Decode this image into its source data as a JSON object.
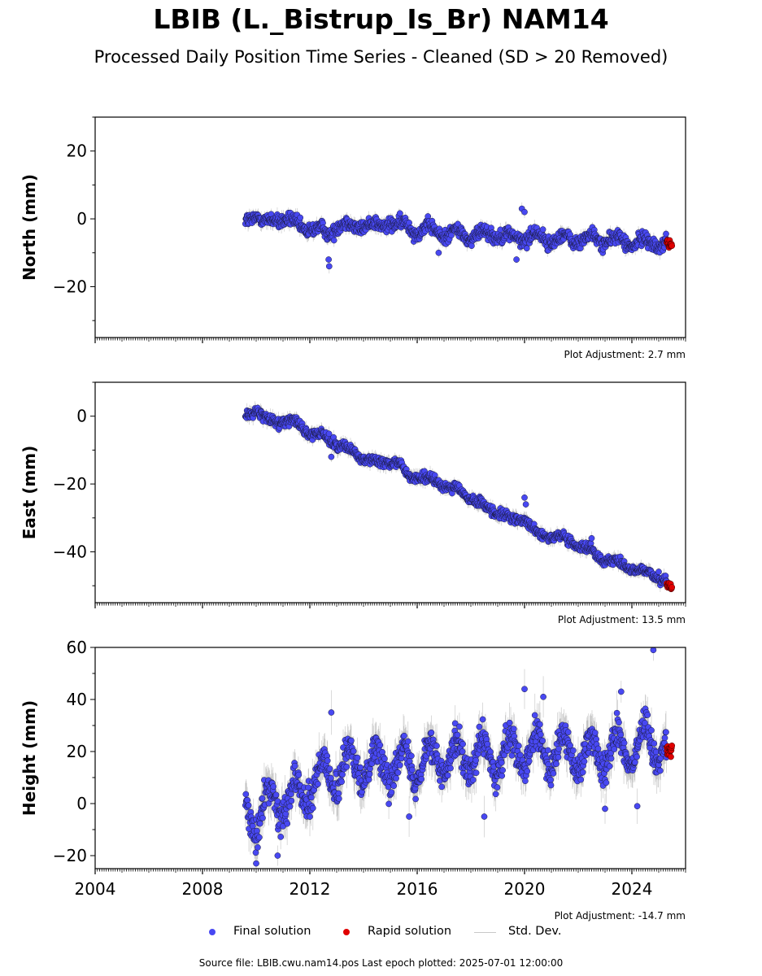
{
  "title": "LBIB (L._Bistrup_Is_Br) NAM14",
  "subtitle": "Processed Daily Position Time Series - Cleaned (SD > 20 Removed)",
  "footer": "Source file: LBIB.cwu.nam14.pos  Last epoch plotted: 2025-07-01 12:00:00",
  "legend": {
    "final": "Final solution",
    "rapid": "Rapid solution",
    "std": "Std. Dev."
  },
  "colors": {
    "final": "#4848f2",
    "rapid": "#e00000",
    "std": "#bdbdbd"
  },
  "chart_data": [
    {
      "type": "scatter",
      "panel": "north",
      "ylabel": "North (mm)",
      "adjustment_text": "Plot Adjustment: 2.7 mm",
      "xlim": [
        2004,
        2026
      ],
      "ylim": [
        -35,
        30
      ],
      "yticks": [
        -20,
        0,
        20
      ],
      "x_major_ticks": [
        2004,
        2008,
        2012,
        2016,
        2020,
        2024
      ],
      "show_x_tick_labels": false,
      "data_start": 2009.6,
      "rapid_start": 2025.3,
      "last_epoch": 2025.5,
      "final_key_points": [
        [
          2009.6,
          -1
        ],
        [
          2010.0,
          2
        ],
        [
          2010.4,
          -2
        ],
        [
          2011.0,
          1
        ],
        [
          2011.6,
          -3
        ],
        [
          2012.0,
          -2
        ],
        [
          2012.7,
          -5
        ],
        [
          2013.0,
          -1
        ],
        [
          2013.6,
          -3
        ],
        [
          2014.0,
          -1
        ],
        [
          2014.6,
          -3
        ],
        [
          2015.0,
          0
        ],
        [
          2015.4,
          -3
        ],
        [
          2015.5,
          -2
        ],
        [
          2016.0,
          -3
        ],
        [
          2017.0,
          -4
        ],
        [
          2018.0,
          -5
        ],
        [
          2019.0,
          -4
        ],
        [
          2019.5,
          -6
        ],
        [
          2020.0,
          -5
        ],
        [
          2021.0,
          -6
        ],
        [
          2022.0,
          -6
        ],
        [
          2023.0,
          -6
        ],
        [
          2024.0,
          -7
        ],
        [
          2025.0,
          -7
        ],
        [
          2025.3,
          -7
        ]
      ],
      "final_noise_mm": 1.8,
      "final_seasonal_mm": 1.5,
      "final_outliers": [
        [
          2012.7,
          -12
        ],
        [
          2012.72,
          -14
        ],
        [
          2016.8,
          -10
        ],
        [
          2019.7,
          -12
        ],
        [
          2019.9,
          3
        ],
        [
          2020.0,
          2
        ]
      ],
      "rapid_range": [
        -8.5,
        -6
      ],
      "stddev_mm": 1.5
    },
    {
      "type": "scatter",
      "panel": "east",
      "ylabel": "East (mm)",
      "adjustment_text": "Plot Adjustment: 13.5 mm",
      "xlim": [
        2004,
        2026
      ],
      "ylim": [
        -55,
        10
      ],
      "yticks": [
        -40,
        -20,
        0
      ],
      "x_major_ticks": [
        2004,
        2008,
        2012,
        2016,
        2020,
        2024
      ],
      "show_x_tick_labels": false,
      "data_start": 2009.6,
      "rapid_start": 2025.3,
      "last_epoch": 2025.5,
      "final_key_points": [
        [
          2009.6,
          0
        ],
        [
          2010.0,
          2
        ],
        [
          2010.5,
          -2
        ],
        [
          2011.0,
          -1
        ],
        [
          2011.5,
          -2
        ],
        [
          2012.0,
          -5
        ],
        [
          2012.5,
          -6
        ],
        [
          2013.0,
          -8
        ],
        [
          2013.5,
          -10
        ],
        [
          2014.0,
          -12
        ],
        [
          2014.5,
          -14
        ],
        [
          2015.0,
          -13
        ],
        [
          2015.4,
          -14
        ],
        [
          2015.5,
          -17
        ],
        [
          2016.0,
          -18
        ],
        [
          2017.0,
          -20
        ],
        [
          2018.0,
          -24
        ],
        [
          2018.5,
          -27
        ],
        [
          2019.0,
          -28
        ],
        [
          2019.5,
          -31
        ],
        [
          2020.0,
          -30
        ],
        [
          2020.5,
          -35
        ],
        [
          2021.0,
          -35
        ],
        [
          2022.0,
          -38
        ],
        [
          2022.5,
          -40
        ],
        [
          2023.0,
          -42
        ],
        [
          2024.0,
          -45
        ],
        [
          2025.0,
          -47
        ],
        [
          2025.3,
          -49
        ]
      ],
      "final_noise_mm": 1.3,
      "final_seasonal_mm": 0.8,
      "final_outliers": [
        [
          2020.0,
          -24
        ],
        [
          2020.05,
          -26
        ],
        [
          2022.5,
          -36
        ],
        [
          2012.8,
          -12
        ]
      ],
      "rapid_range": [
        -51,
        -49
      ],
      "stddev_mm": 1.5
    },
    {
      "type": "scatter",
      "panel": "height",
      "ylabel": "Height (mm)",
      "adjustment_text": "Plot Adjustment: -14.7 mm",
      "xlim": [
        2004,
        2026
      ],
      "ylim": [
        -25,
        60
      ],
      "yticks": [
        -20,
        0,
        20,
        40,
        60
      ],
      "x_major_ticks": [
        2004,
        2008,
        2012,
        2016,
        2020,
        2024
      ],
      "x_tick_labels": [
        "2004",
        "2008",
        "2012",
        "2016",
        "2020",
        "2024"
      ],
      "show_x_tick_labels": true,
      "data_start": 2009.6,
      "rapid_start": 2025.3,
      "last_epoch": 2025.5,
      "final_key_points": [
        [
          2009.6,
          -2
        ],
        [
          2010.0,
          -6
        ],
        [
          2010.5,
          0
        ],
        [
          2011.0,
          2
        ],
        [
          2011.5,
          3
        ],
        [
          2012.0,
          8
        ],
        [
          2012.5,
          10
        ],
        [
          2013.0,
          12
        ],
        [
          2014.0,
          15
        ],
        [
          2015.0,
          15
        ],
        [
          2016.0,
          16
        ],
        [
          2017.0,
          18
        ],
        [
          2018.0,
          18
        ],
        [
          2019.0,
          17
        ],
        [
          2020.0,
          20
        ],
        [
          2021.0,
          20
        ],
        [
          2022.0,
          19
        ],
        [
          2023.0,
          20
        ],
        [
          2024.0,
          22
        ],
        [
          2025.0,
          24
        ],
        [
          2025.3,
          22
        ]
      ],
      "final_noise_mm": 5.5,
      "final_seasonal_mm": 7,
      "final_outliers": [
        [
          2024.8,
          59
        ],
        [
          2010.0,
          -23
        ],
        [
          2010.8,
          -20
        ],
        [
          2020.0,
          44
        ],
        [
          2020.7,
          41
        ],
        [
          2023.6,
          43
        ],
        [
          2012.8,
          35
        ],
        [
          2015.7,
          -5
        ],
        [
          2023.0,
          -2
        ],
        [
          2024.2,
          -1
        ],
        [
          2018.5,
          -5
        ]
      ],
      "rapid_range": [
        17,
        23
      ],
      "stddev_mm": 6
    }
  ]
}
